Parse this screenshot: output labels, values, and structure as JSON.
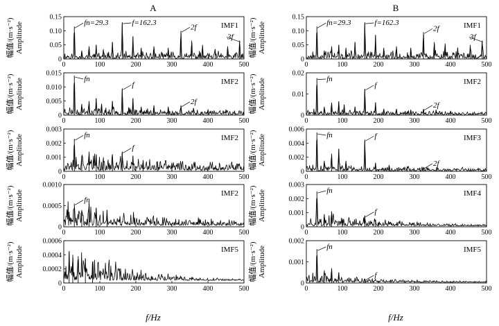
{
  "figure": {
    "column_titles": [
      "A",
      "B"
    ],
    "xlabel": "f/Hz",
    "ylabel_cn": "幅值/(m·s⁻²)",
    "ylabel_en": "Amplitude"
  },
  "chart_data": [
    {
      "type": "line",
      "id": "A-1",
      "column": "A",
      "row": 0,
      "imf_label": "IMF1",
      "xlim": [
        0,
        500
      ],
      "ylim": [
        0,
        0.15
      ],
      "xticks": [
        0,
        100,
        200,
        300,
        400,
        500
      ],
      "yticks": [
        0,
        0.05,
        0.1,
        0.15
      ],
      "ytick_labels": [
        "0",
        "0.05",
        "0.10",
        "0.15"
      ],
      "noise_level": 0.018,
      "noise_seed": 11,
      "decay": 0,
      "peaks": [
        [
          29.3,
          0.115
        ],
        [
          50,
          0.03
        ],
        [
          70,
          0.045
        ],
        [
          90,
          0.05
        ],
        [
          110,
          0.035
        ],
        [
          135,
          0.06
        ],
        [
          162.3,
          0.13
        ],
        [
          192,
          0.08
        ],
        [
          215,
          0.04
        ],
        [
          250,
          0.045
        ],
        [
          290,
          0.04
        ],
        [
          325,
          0.1
        ],
        [
          355,
          0.065
        ],
        [
          385,
          0.05
        ],
        [
          420,
          0.035
        ],
        [
          455,
          0.045
        ],
        [
          488,
          0.065
        ]
      ],
      "annotations": [
        {
          "freq": 29.3,
          "label": "fn=29.3"
        },
        {
          "freq": 162.3,
          "label": "f=162.3"
        },
        {
          "freq": 325,
          "label": "2f"
        },
        {
          "freq": 488,
          "label": "3f"
        }
      ]
    },
    {
      "type": "line",
      "id": "A-2",
      "column": "A",
      "row": 1,
      "imf_label": "IMF2",
      "xlim": [
        0,
        500
      ],
      "ylim": [
        0,
        0.015
      ],
      "xticks": [
        0,
        100,
        200,
        300,
        400,
        500
      ],
      "yticks": [
        0,
        0.005,
        0.01,
        0.015
      ],
      "ytick_labels": [
        "0",
        "0.005",
        "0.010",
        "0.015"
      ],
      "noise_level": 0.0022,
      "noise_seed": 23,
      "decay": 0.6,
      "peaks": [
        [
          29.3,
          0.014
        ],
        [
          50,
          0.004
        ],
        [
          70,
          0.005
        ],
        [
          90,
          0.006
        ],
        [
          105,
          0.004
        ],
        [
          135,
          0.005
        ],
        [
          162.3,
          0.0095
        ],
        [
          192,
          0.006
        ],
        [
          215,
          0.003
        ],
        [
          250,
          0.0035
        ],
        [
          290,
          0.003
        ],
        [
          325,
          0.0035
        ],
        [
          360,
          0.0025
        ],
        [
          400,
          0.002
        ],
        [
          450,
          0.002
        ]
      ],
      "annotations": [
        {
          "freq": 29.3,
          "label": "fn"
        },
        {
          "freq": 162.3,
          "label": "f"
        },
        {
          "freq": 325,
          "label": "2f"
        }
      ]
    },
    {
      "type": "line",
      "id": "A-3",
      "column": "A",
      "row": 2,
      "imf_label": "IMF2",
      "xlim": [
        0,
        500
      ],
      "ylim": [
        0,
        0.003
      ],
      "xticks": [
        0,
        100,
        200,
        300,
        400,
        500
      ],
      "yticks": [
        0,
        0.001,
        0.002,
        0.003
      ],
      "ytick_labels": [
        "0",
        "0.001",
        "0.002",
        "0.003"
      ],
      "noise_level": 0.0009,
      "noise_seed": 37,
      "decay": 0.8,
      "peaks": [
        [
          29.3,
          0.0023
        ],
        [
          50,
          0.0011
        ],
        [
          70,
          0.0014
        ],
        [
          90,
          0.0012
        ],
        [
          110,
          0.001
        ],
        [
          135,
          0.0012
        ],
        [
          162.3,
          0.0014
        ],
        [
          192,
          0.0011
        ],
        [
          220,
          0.0008
        ],
        [
          260,
          0.0007
        ],
        [
          300,
          0.0006
        ]
      ],
      "annotations": [
        {
          "freq": 29.3,
          "label": "fn"
        },
        {
          "freq": 162.3,
          "label": "f"
        }
      ]
    },
    {
      "type": "line",
      "id": "A-4",
      "column": "A",
      "row": 3,
      "imf_label": "IMF2",
      "xlim": [
        0,
        500
      ],
      "ylim": [
        0,
        0.001
      ],
      "xticks": [
        0,
        100,
        200,
        300,
        400,
        500
      ],
      "yticks": [
        0,
        0.0005,
        0.001
      ],
      "ytick_labels": [
        "0",
        "0.0005",
        "0.0010"
      ],
      "noise_level": 0.0004,
      "noise_seed": 41,
      "decay": 1.6,
      "peaks": [
        [
          29.3,
          0.00055
        ],
        [
          50,
          0.0004
        ],
        [
          70,
          0.0006
        ],
        [
          90,
          0.00045
        ],
        [
          120,
          0.0004
        ]
      ],
      "annotations": [
        {
          "freq": 29.3,
          "label": "fn"
        }
      ]
    },
    {
      "type": "line",
      "id": "A-5",
      "column": "A",
      "row": 4,
      "imf_label": "IMF5",
      "xlim": [
        0,
        500
      ],
      "ylim": [
        0,
        0.0006
      ],
      "xticks": [
        0,
        100,
        200,
        300,
        400,
        500
      ],
      "yticks": [
        0,
        0.0002,
        0.0004,
        0.0006
      ],
      "ytick_labels": [
        "0",
        "0.0002",
        "0.0004",
        "0.0006"
      ],
      "noise_level": 0.00045,
      "noise_seed": 53,
      "decay": 3.2,
      "peaks": [
        [
          15,
          0.00045
        ],
        [
          25,
          0.0004
        ],
        [
          40,
          0.00038
        ],
        [
          60,
          0.00035
        ],
        [
          80,
          0.0003
        ]
      ],
      "annotations": []
    },
    {
      "type": "line",
      "id": "B-1",
      "column": "B",
      "row": 0,
      "imf_label": "IMF1",
      "xlim": [
        0,
        500
      ],
      "ylim": [
        0,
        0.15
      ],
      "xticks": [
        0,
        100,
        200,
        300,
        400,
        500
      ],
      "yticks": [
        0,
        0.05,
        0.1,
        0.15
      ],
      "ytick_labels": [
        "0",
        "0.05",
        "0.10",
        "0.15"
      ],
      "noise_level": 0.02,
      "noise_seed": 67,
      "decay": 0,
      "peaks": [
        [
          29.3,
          0.115
        ],
        [
          50,
          0.03
        ],
        [
          70,
          0.045
        ],
        [
          90,
          0.05
        ],
        [
          110,
          0.04
        ],
        [
          135,
          0.06
        ],
        [
          162.3,
          0.13
        ],
        [
          192,
          0.085
        ],
        [
          215,
          0.04
        ],
        [
          250,
          0.045
        ],
        [
          290,
          0.04
        ],
        [
          325,
          0.095
        ],
        [
          355,
          0.06
        ],
        [
          385,
          0.055
        ],
        [
          420,
          0.04
        ],
        [
          455,
          0.05
        ],
        [
          488,
          0.065
        ]
      ],
      "annotations": [
        {
          "freq": 29.3,
          "label": "fn=29.3"
        },
        {
          "freq": 162.3,
          "label": "f=162.3"
        },
        {
          "freq": 325,
          "label": "2f"
        },
        {
          "freq": 488,
          "label": "3f"
        }
      ]
    },
    {
      "type": "line",
      "id": "B-2",
      "column": "B",
      "row": 1,
      "imf_label": "IMF2",
      "xlim": [
        0,
        500
      ],
      "ylim": [
        0,
        0.02
      ],
      "xticks": [
        0,
        100,
        200,
        300,
        400,
        500
      ],
      "yticks": [
        0,
        0.01,
        0.02
      ],
      "ytick_labels": [
        "0",
        "0.01",
        "0.02"
      ],
      "noise_level": 0.002,
      "noise_seed": 71,
      "decay": 0.6,
      "peaks": [
        [
          29.3,
          0.0175
        ],
        [
          50,
          0.004
        ],
        [
          70,
          0.006
        ],
        [
          90,
          0.0065
        ],
        [
          105,
          0.005
        ],
        [
          135,
          0.004
        ],
        [
          162.3,
          0.0125
        ],
        [
          192,
          0.006
        ],
        [
          215,
          0.003
        ],
        [
          250,
          0.003
        ],
        [
          290,
          0.0025
        ],
        [
          325,
          0.003
        ],
        [
          360,
          0.0025
        ],
        [
          400,
          0.002
        ]
      ],
      "annotations": [
        {
          "freq": 29.3,
          "label": "fn"
        },
        {
          "freq": 162.3,
          "label": "f"
        },
        {
          "freq": 325,
          "label": "2f"
        }
      ]
    },
    {
      "type": "line",
      "id": "B-3",
      "column": "B",
      "row": 2,
      "imf_label": "IMF3",
      "xlim": [
        0,
        500
      ],
      "ylim": [
        0,
        0.006
      ],
      "xticks": [
        0,
        100,
        200,
        300,
        400,
        500
      ],
      "yticks": [
        0,
        0.002,
        0.004,
        0.006
      ],
      "ytick_labels": [
        "0",
        "0.002",
        "0.004",
        "0.006"
      ],
      "noise_level": 0.0008,
      "noise_seed": 83,
      "decay": 1.0,
      "peaks": [
        [
          29.3,
          0.0055
        ],
        [
          50,
          0.0015
        ],
        [
          70,
          0.0025
        ],
        [
          90,
          0.0032
        ],
        [
          110,
          0.0015
        ],
        [
          162.3,
          0.0045
        ],
        [
          192,
          0.0012
        ],
        [
          230,
          0.0009
        ],
        [
          280,
          0.0007
        ],
        [
          325,
          0.0006
        ]
      ],
      "annotations": [
        {
          "freq": 29.3,
          "label": "fn"
        },
        {
          "freq": 162.3,
          "label": "f"
        },
        {
          "freq": 325,
          "label": "2f"
        }
      ]
    },
    {
      "type": "line",
      "id": "B-4",
      "column": "B",
      "row": 3,
      "imf_label": "IMF4",
      "xlim": [
        0,
        500
      ],
      "ylim": [
        0,
        0.003
      ],
      "xticks": [
        0,
        100,
        200,
        300,
        400,
        500
      ],
      "yticks": [
        0,
        0.001,
        0.002,
        0.003
      ],
      "ytick_labels": [
        "0",
        "0.001",
        "0.002",
        "0.003"
      ],
      "noise_level": 0.0008,
      "noise_seed": 97,
      "decay": 2.2,
      "peaks": [
        [
          29.3,
          0.0025
        ],
        [
          50,
          0.0009
        ],
        [
          70,
          0.0011
        ],
        [
          162.3,
          0.0008
        ],
        [
          192,
          0.0005
        ]
      ],
      "annotations": [
        {
          "freq": 29.3,
          "label": "fn"
        },
        {
          "freq": 162.3,
          "label": "f"
        }
      ]
    },
    {
      "type": "line",
      "id": "B-5",
      "column": "B",
      "row": 4,
      "imf_label": "IMF5",
      "xlim": [
        0,
        500
      ],
      "ylim": [
        0,
        0.002
      ],
      "xticks": [
        0,
        100,
        200,
        300,
        400,
        500
      ],
      "yticks": [
        0,
        0.001,
        0.002
      ],
      "ytick_labels": [
        "0",
        "0.001",
        "0.002"
      ],
      "noise_level": 0.0004,
      "noise_seed": 101,
      "decay": 2.4,
      "peaks": [
        [
          29.3,
          0.0016
        ],
        [
          50,
          0.0006
        ],
        [
          70,
          0.0007
        ],
        [
          90,
          0.0005
        ],
        [
          162.3,
          0.0002
        ]
      ],
      "annotations": [
        {
          "freq": 29.3,
          "label": "fn"
        },
        {
          "freq": 162.3,
          "label": "f"
        }
      ]
    }
  ]
}
